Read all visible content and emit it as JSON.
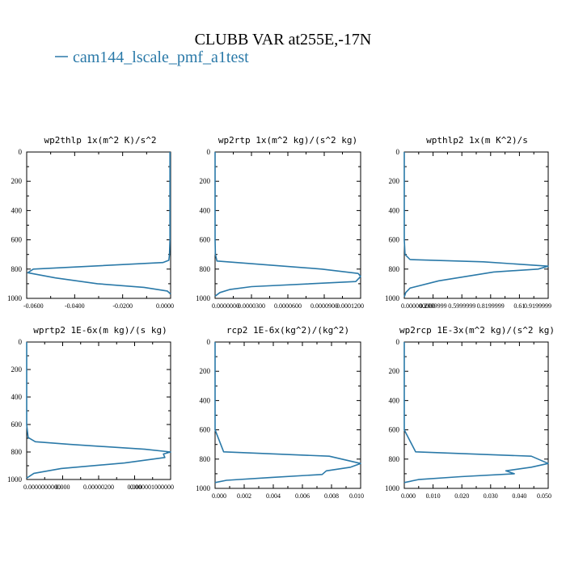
{
  "figure": {
    "title": "CLUBB VAR at255E,-17N",
    "legend_entry": "cam144_lscale_pmf_a1test",
    "line_color": "#2a79a8"
  },
  "chart_data": [
    {
      "type": "line",
      "title": "wp2thlp  1x(m^2 K)/s^2",
      "xlim": [
        -0.065,
        0.0
      ],
      "ylim": [
        1000,
        0
      ],
      "xticks": [
        "-0.0600",
        "-0.0400",
        "-0.0200",
        "0.0000"
      ],
      "yticks": [
        "0",
        "200",
        "400",
        "600",
        "800",
        "1000"
      ],
      "series": [
        {
          "name": "cam144_lscale_pmf_a1test",
          "x": [
            -0.0003,
            -0.0003,
            -0.0003,
            -0.0003,
            -0.0005,
            -0.0008,
            -0.0035,
            -0.062,
            -0.0645,
            -0.052,
            -0.033,
            -0.012,
            -0.0015,
            0.0
          ],
          "y": [
            0,
            200,
            400,
            600,
            700,
            740,
            755,
            800,
            825,
            860,
            900,
            925,
            950,
            970
          ]
        }
      ]
    },
    {
      "type": "line",
      "title": "wp2rtp  1x(m^2 kg)/(s^2 kg)",
      "xlim": [
        0.0,
        0.00012
      ],
      "ylim": [
        1000,
        0
      ],
      "xticks": [
        "0.0000000",
        "0.0000300",
        "0.0000600",
        "0.0000900",
        "0.0001200"
      ],
      "yticks": [
        "0",
        "200",
        "400",
        "600",
        "800",
        "1000"
      ],
      "series": [
        {
          "name": "cam144_lscale_pmf_a1test",
          "x": [
            0.0,
            0.0,
            0.0,
            0.0,
            3e-07,
            1.5e-06,
            8.8e-05,
            0.000118,
            0.00012,
            0.000116,
            3e-05,
            1.2e-05,
            4e-06,
            0.0
          ],
          "y": [
            0,
            200,
            400,
            600,
            700,
            745,
            800,
            830,
            850,
            885,
            920,
            940,
            960,
            985
          ]
        }
      ]
    },
    {
      "type": "line",
      "title": "wpthlp2  1x(m K^2)/s",
      "xlim": [
        0.0,
        1.0
      ],
      "ylim": [
        1000,
        0
      ],
      "xticks": [
        "0.000000000",
        "0.2999999",
        "0.5999999",
        "0.8199999",
        "0.61",
        "0.9199999"
      ],
      "yticks": [
        "0",
        "200",
        "400",
        "600",
        "800",
        "1000"
      ],
      "series": [
        {
          "name": "cam144_lscale_pmf_a1test",
          "x": [
            0.0,
            0.0,
            0.0,
            0.0,
            0.005,
            0.04,
            0.55,
            1.0,
            0.93,
            0.62,
            0.24,
            0.04,
            0.01,
            0.0
          ],
          "y": [
            0,
            200,
            400,
            600,
            700,
            735,
            750,
            780,
            800,
            820,
            880,
            930,
            960,
            990
          ]
        }
      ]
    },
    {
      "type": "line",
      "title": "wprtp2  1E-6x(m kg)/(s kg)",
      "xlim": [
        0.0,
        1.0
      ],
      "ylim": [
        1000,
        0
      ],
      "xticks": [
        "0.0000000000",
        "0.000",
        "0.00000200",
        "0.000",
        "0.000001000000"
      ],
      "yticks": [
        "0",
        "200",
        "400",
        "600",
        "800",
        "1000"
      ],
      "series": [
        {
          "name": "cam144_lscale_pmf_a1test",
          "x": [
            0.0,
            0.0,
            0.0,
            0.0,
            0.01,
            0.06,
            0.3,
            0.82,
            1.0,
            0.95,
            0.96,
            0.68,
            0.24,
            0.05,
            0.0
          ],
          "y": [
            0,
            200,
            400,
            600,
            695,
            725,
            745,
            780,
            800,
            815,
            840,
            880,
            920,
            955,
            990
          ]
        }
      ]
    },
    {
      "type": "line",
      "title": "rcp2  1E-6x(kg^2)/(kg^2)",
      "xlim": [
        0.0,
        0.0102
      ],
      "ylim": [
        1000,
        0
      ],
      "xticks": [
        "0.000",
        "0.002",
        "0.004",
        "0.006",
        "0.008",
        "0.010"
      ],
      "yticks": [
        "0",
        "200",
        "400",
        "600",
        "800",
        "1000"
      ],
      "series": [
        {
          "name": "cam144_lscale_pmf_a1test",
          "x": [
            0.0,
            0.0,
            0.0,
            0.0,
            0.0006,
            0.008,
            0.0102,
            0.0095,
            0.0078,
            0.0075,
            0.004,
            0.0008,
            0.0
          ],
          "y": [
            0,
            200,
            400,
            600,
            750,
            780,
            830,
            855,
            880,
            905,
            925,
            945,
            960
          ]
        }
      ]
    },
    {
      "type": "line",
      "title": "wp2rcp  1E-3x(m^2 kg)/(s^2 kg)",
      "xlim": [
        0.0,
        0.051
      ],
      "ylim": [
        1000,
        0
      ],
      "xticks": [
        "0.000",
        "0.010",
        "0.020",
        "0.030",
        "0.040",
        "0.050"
      ],
      "yticks": [
        "0",
        "200",
        "400",
        "600",
        "800",
        "1000"
      ],
      "series": [
        {
          "name": "cam144_lscale_pmf_a1test",
          "x": [
            0.0,
            0.0,
            0.0,
            0.0,
            0.004,
            0.045,
            0.051,
            0.045,
            0.036,
            0.039,
            0.02,
            0.005,
            0.0
          ],
          "y": [
            0,
            200,
            400,
            600,
            750,
            780,
            830,
            855,
            880,
            900,
            920,
            940,
            960
          ]
        }
      ]
    }
  ]
}
